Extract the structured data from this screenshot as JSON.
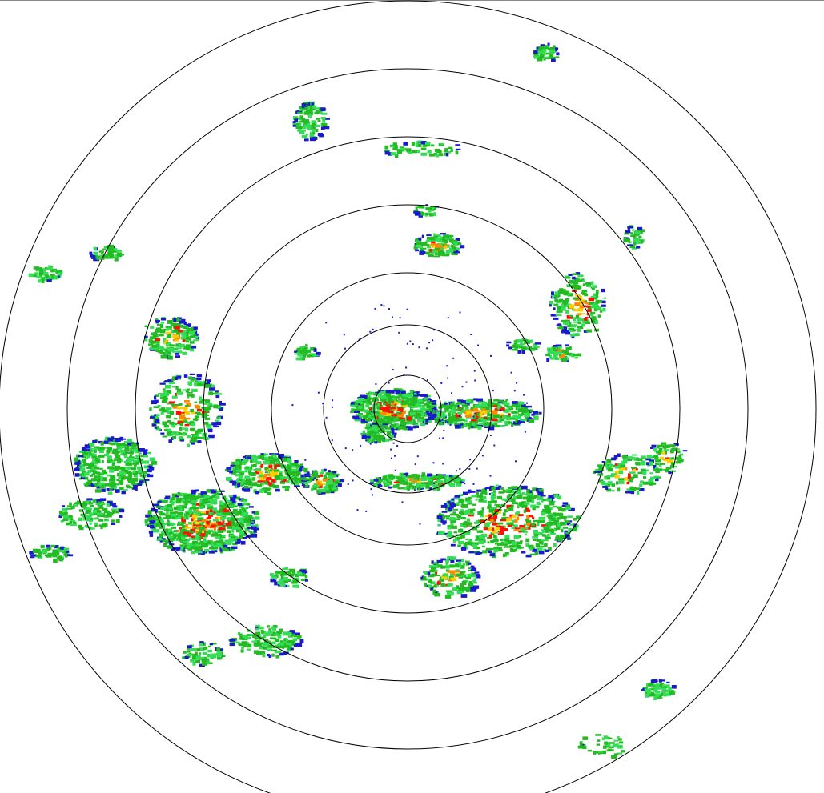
{
  "display": {
    "type": "radar-ppi",
    "range_ring_count": 7,
    "ring_color": "#000000",
    "background": "#ffffff"
  },
  "reflectivity_palette": {
    "weak": "#1a1acc",
    "light": "#22bb22",
    "light_bright": "#33dd55",
    "moderate": "#ffcc00",
    "strong": "#ff8800",
    "heavy": "#ff1100"
  }
}
